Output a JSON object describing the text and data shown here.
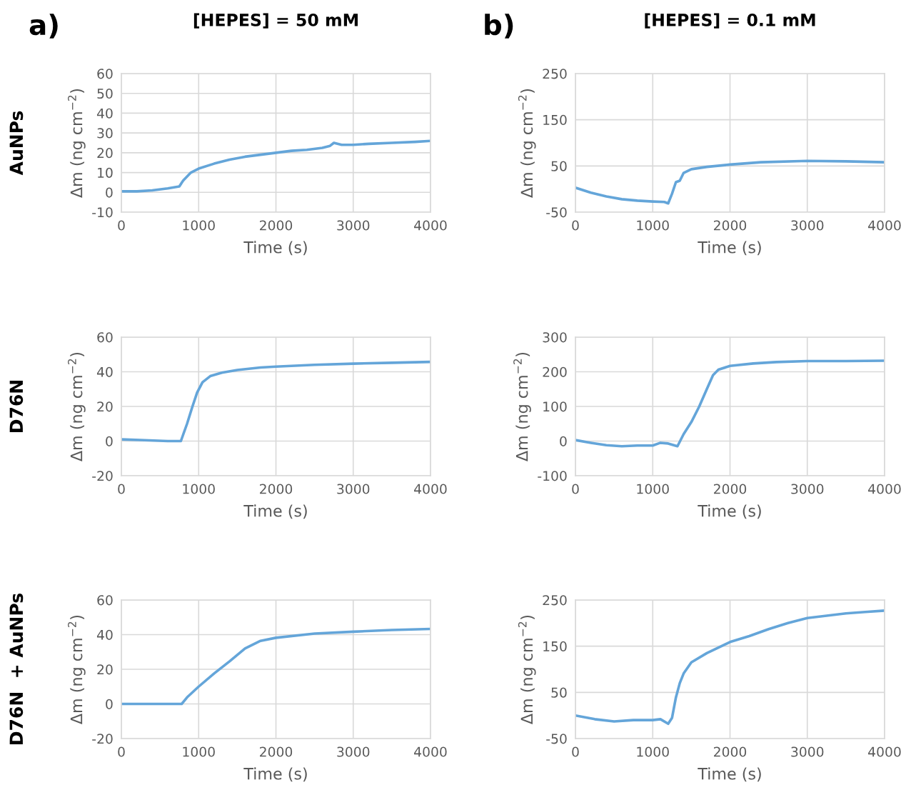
{
  "chart_data": [
    {
      "type": "line",
      "title": "[HEPES] = 50 mM",
      "xlabel": "Time (s)",
      "ylabel": "Δm (ng cm$^{−2}$)",
      "annotations": [
        "AuNPs",
        "a)"
      ],
      "x": [
        0,
        200,
        400,
        600,
        750,
        800,
        900,
        1000,
        1200,
        1400,
        1600,
        1800,
        2000,
        2200,
        2400,
        2600,
        2700,
        2750,
        2850,
        3000,
        3200,
        3500,
        3800,
        4000
      ],
      "series": [
        {
          "color": "#64a5d9",
          "values": [
            0.5,
            0.5,
            1,
            2,
            3,
            6,
            10,
            12,
            14.5,
            16.5,
            18,
            19,
            20,
            21,
            21.5,
            22.5,
            23.5,
            25,
            24,
            24,
            24.5,
            25,
            25.5,
            26
          ]
        }
      ],
      "xlim": [
        0,
        4000
      ],
      "xticks": [
        0,
        1000,
        2000,
        3000,
        4000
      ],
      "ylim": [
        -10,
        60
      ],
      "yticks": [
        -10,
        0,
        10,
        20,
        30,
        40,
        50,
        60
      ],
      "grid": true
    },
    {
      "type": "line",
      "title": "[HEPES] = 0.1 mM",
      "xlabel": "Time (s)",
      "ylabel": "Δm (ng cm$^{−2}$)",
      "annotations": [
        "b)"
      ],
      "x": [
        0,
        200,
        400,
        600,
        800,
        1000,
        1150,
        1200,
        1250,
        1300,
        1350,
        1400,
        1500,
        1700,
        2000,
        2400,
        3000,
        3500,
        4000
      ],
      "series": [
        {
          "color": "#64a5d9",
          "values": [
            3,
            -8,
            -16,
            -22,
            -25,
            -27,
            -28,
            -31,
            -10,
            15,
            18,
            35,
            43,
            48,
            53,
            58,
            61,
            60,
            58
          ]
        }
      ],
      "xlim": [
        0,
        4000
      ],
      "xticks": [
        0,
        1000,
        2000,
        3000,
        4000
      ],
      "ylim": [
        -50,
        250
      ],
      "yticks": [
        -50,
        50,
        150,
        250
      ],
      "grid": true
    },
    {
      "type": "line",
      "xlabel": "Time (s)",
      "ylabel": "Δm (ng cm$^{−2}$)",
      "annotations": [
        "D76N"
      ],
      "x": [
        0,
        300,
        600,
        770,
        850,
        920,
        980,
        1050,
        1150,
        1300,
        1500,
        1800,
        2000,
        2500,
        3000,
        3500,
        4000
      ],
      "series": [
        {
          "color": "#64a5d9",
          "values": [
            1,
            0.5,
            0,
            0,
            10,
            20,
            28,
            34,
            37.5,
            39.5,
            41,
            42.5,
            43,
            44,
            44.7,
            45.2,
            45.7
          ]
        }
      ],
      "xlim": [
        0,
        4000
      ],
      "xticks": [
        0,
        1000,
        2000,
        3000,
        4000
      ],
      "ylim": [
        -20,
        60
      ],
      "yticks": [
        -20,
        0,
        20,
        40,
        60
      ],
      "grid": true
    },
    {
      "type": "line",
      "xlabel": "Time (s)",
      "ylabel": "Δm (ng cm$^{−2}$)",
      "x": [
        0,
        200,
        400,
        600,
        800,
        1000,
        1100,
        1200,
        1320,
        1400,
        1500,
        1600,
        1700,
        1780,
        1850,
        2000,
        2300,
        2600,
        3000,
        3500,
        4000
      ],
      "series": [
        {
          "color": "#64a5d9",
          "values": [
            3,
            -5,
            -12,
            -15,
            -13,
            -13,
            -5,
            -7,
            -15,
            20,
            55,
            99,
            150,
            190,
            206,
            217,
            224,
            228,
            231,
            231,
            232
          ]
        }
      ],
      "xlim": [
        0,
        4000
      ],
      "xticks": [
        0,
        1000,
        2000,
        3000,
        4000
      ],
      "ylim": [
        -100,
        300
      ],
      "yticks": [
        -100,
        0,
        100,
        200,
        300
      ],
      "grid": true
    },
    {
      "type": "line",
      "xlabel": "Time (s)",
      "ylabel": "Δm (ng cm$^{−2}$)",
      "annotations": [
        "D76N  + AuNPs"
      ],
      "x": [
        0,
        300,
        600,
        780,
        850,
        1000,
        1200,
        1400,
        1600,
        1800,
        2000,
        2500,
        3000,
        3500,
        4000
      ],
      "series": [
        {
          "color": "#64a5d9",
          "values": [
            0,
            0,
            0,
            0,
            3.8,
            10,
            17.6,
            24.6,
            32,
            36.4,
            38.2,
            40.6,
            41.7,
            42.7,
            43.3
          ]
        }
      ],
      "xlim": [
        0,
        4000
      ],
      "xticks": [
        0,
        1000,
        2000,
        3000,
        4000
      ],
      "ylim": [
        -20,
        60
      ],
      "yticks": [
        -20,
        0,
        20,
        40,
        60
      ],
      "grid": true
    },
    {
      "type": "line",
      "xlabel": "Time (s)",
      "ylabel": "Δm (ng cm$^{−2}$)",
      "x": [
        0,
        250,
        500,
        750,
        1000,
        1100,
        1200,
        1250,
        1300,
        1350,
        1400,
        1500,
        1700,
        2000,
        2250,
        2500,
        2750,
        3000,
        3250,
        3500,
        3750,
        4000
      ],
      "series": [
        {
          "color": "#64a5d9",
          "values": [
            0,
            -8,
            -13,
            -10,
            -10,
            -8,
            -18,
            -5,
            39,
            70,
            91,
            115,
            135,
            159,
            172,
            187,
            200,
            211,
            216,
            221,
            224,
            227
          ]
        }
      ],
      "xlim": [
        0,
        4000
      ],
      "xticks": [
        0,
        1000,
        2000,
        3000,
        4000
      ],
      "ylim": [
        -50,
        250
      ],
      "yticks": [
        -50,
        50,
        150,
        250
      ],
      "grid": true
    }
  ]
}
